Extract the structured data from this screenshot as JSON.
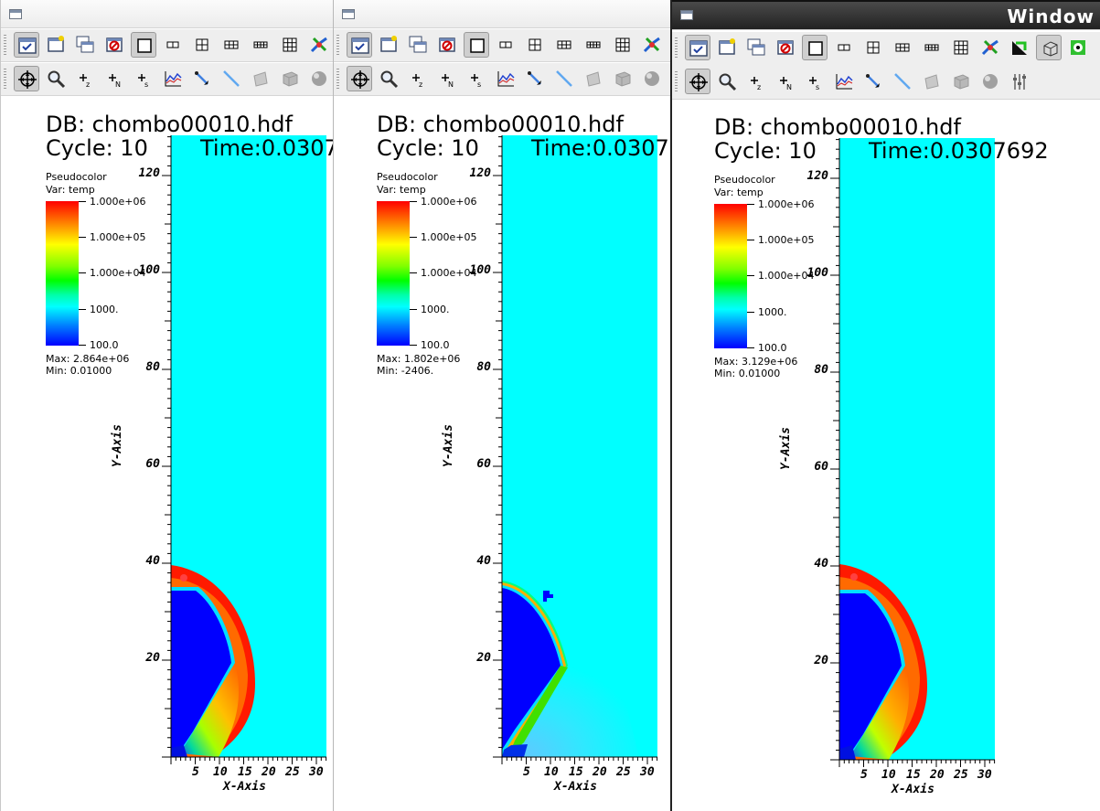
{
  "windows": [
    {
      "id": "w1",
      "title": "",
      "db_label": "DB: chombo00010.hdf",
      "cycle_label": "Cycle: 10",
      "time_label": "Time:0.0307",
      "legend": {
        "plot_type": "Pseudocolor",
        "var": "Var: temp",
        "ticks": [
          "1.000e+06",
          "1.000e+05",
          "1.000e+04",
          "1000.",
          "100.0"
        ],
        "max": "Max: 2.864e+06",
        "min": "Min: 0.01000"
      },
      "yticks": [
        "120",
        "100",
        "80",
        "60",
        "40",
        "20"
      ],
      "xticks": [
        "5",
        "10",
        "15",
        "20",
        "25",
        "30"
      ],
      "xlabel": "X-Axis",
      "ylabel": "Y-Axis"
    },
    {
      "id": "w2",
      "title": "",
      "db_label": "DB: chombo00010.hdf",
      "cycle_label": "Cycle: 10",
      "time_label": "Time:0.0307",
      "legend": {
        "plot_type": "Pseudocolor",
        "var": "Var: temp",
        "ticks": [
          "1.000e+06",
          "1.000e+05",
          "1.000e+04",
          "1000.",
          "100.0"
        ],
        "max": "Max: 1.802e+06",
        "min": "Min: -2406."
      },
      "yticks": [
        "120",
        "100",
        "80",
        "60",
        "40",
        "20"
      ],
      "xticks": [
        "5",
        "10",
        "15",
        "20",
        "25",
        "30"
      ],
      "xlabel": "X-Axis",
      "ylabel": "Y-Axis"
    },
    {
      "id": "w3",
      "title": "Window",
      "db_label": "DB: chombo00010.hdf",
      "cycle_label": "Cycle: 10",
      "time_label": "Time:0.0307692",
      "legend": {
        "plot_type": "Pseudocolor",
        "var": "Var: temp",
        "ticks": [
          "1.000e+06",
          "1.000e+05",
          "1.000e+04",
          "1000.",
          "100.0"
        ],
        "max": "Max: 3.129e+06",
        "min": "Min: 0.01000"
      },
      "yticks": [
        "120",
        "100",
        "80",
        "60",
        "40",
        "20"
      ],
      "xticks": [
        "5",
        "10",
        "15",
        "20",
        "25",
        "30"
      ],
      "xlabel": "X-Axis",
      "ylabel": "Y-Axis"
    }
  ],
  "toolbar_row1_icons": [
    "active-window-icon",
    "new-window-icon",
    "clone-window-icon",
    "delete-window-icon",
    "layout-1x1-icon",
    "layout-1x2-icon",
    "layout-2x2-icon",
    "layout-3x2-icon",
    "layout-4x1-icon",
    "layout-3x3-icon",
    "lock-view-icon"
  ],
  "toolbar_row2_icons": [
    "navigate-icon",
    "zoom-icon",
    "zone-pick-icon",
    "node-pick-icon",
    "spreadsheet-pick-icon",
    "lineout-icon",
    "point-tool-icon",
    "line-tool-icon",
    "plane-tool-icon",
    "box-tool-icon",
    "sphere-tool-icon"
  ],
  "colors": {
    "plot_background": "#00ffff",
    "cold_blue": "#0000ff",
    "hot_red": "#ff0000"
  }
}
